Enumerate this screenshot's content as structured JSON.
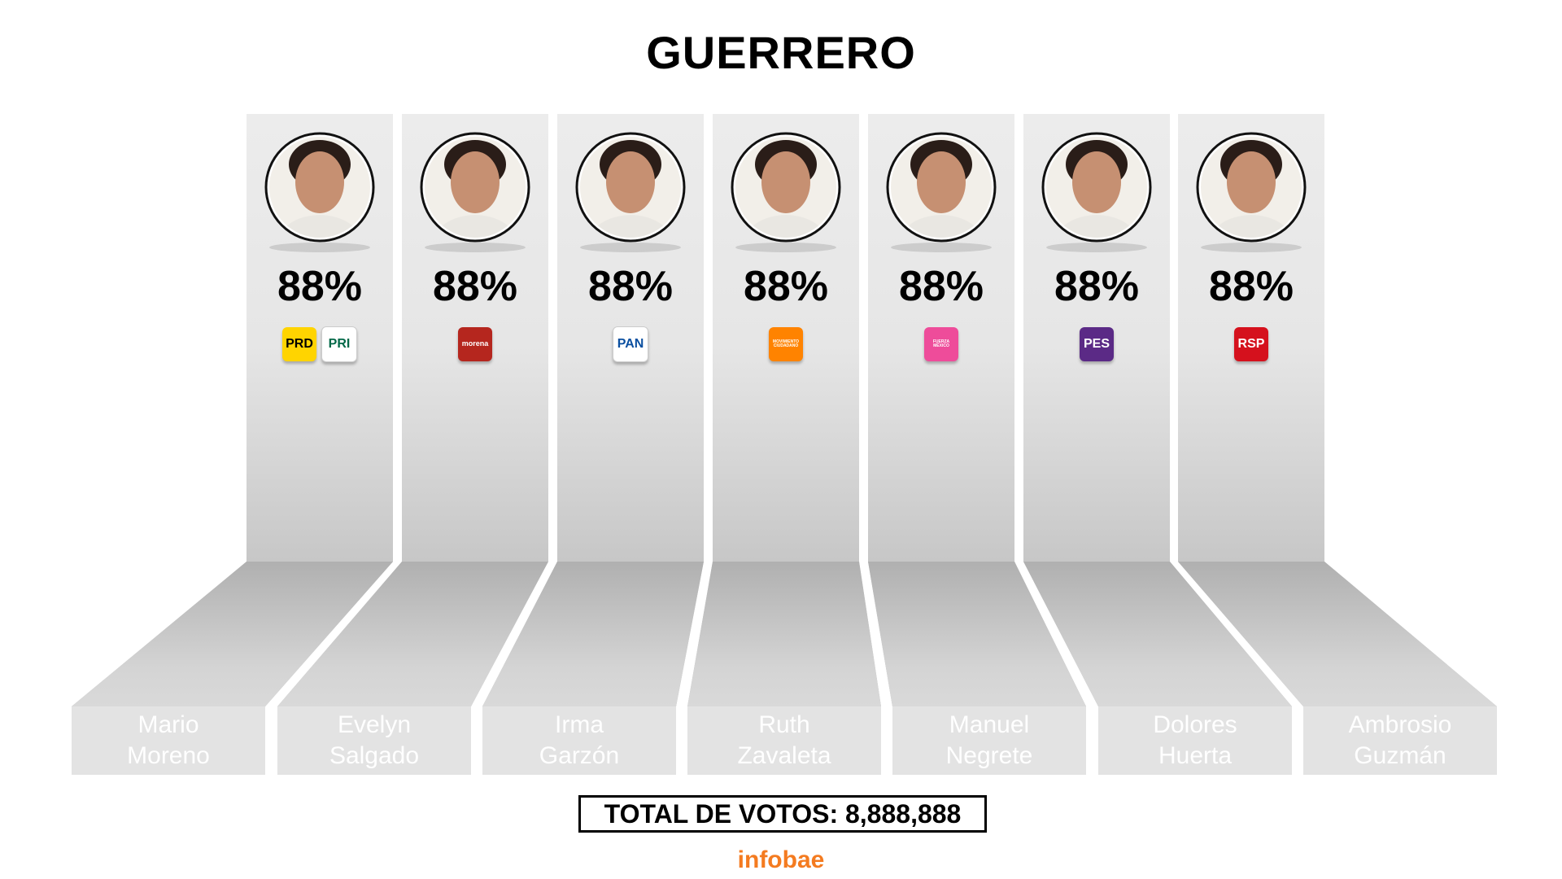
{
  "title": "GUERRERO",
  "total_label": "TOTAL DE VOTOS: 8,888,888",
  "brand": "infobae",
  "colors": {
    "panel_light": "#ededed",
    "panel_dark": "#a9a9a9",
    "name_text": "#ffffff",
    "brand": "#f47b20"
  },
  "candidates": [
    {
      "name_line1": "Mario",
      "name_line2": "Moreno",
      "percent": "88%",
      "logos": [
        {
          "label": "PRD",
          "icon": "prd-logo-icon",
          "bg": "#ffd400",
          "fg": "#000000"
        },
        {
          "label": "PRI",
          "icon": "pri-logo-icon",
          "bg": "#ffffff",
          "fg": "#006847"
        }
      ]
    },
    {
      "name_line1": "Evelyn",
      "name_line2": "Salgado",
      "percent": "88%",
      "logos": [
        {
          "label": "morena",
          "icon": "morena-logo-icon",
          "bg": "#b5261e",
          "fg": "#ffffff"
        }
      ]
    },
    {
      "name_line1": "Irma",
      "name_line2": "Garzón",
      "percent": "88%",
      "logos": [
        {
          "label": "PAN",
          "icon": "pan-logo-icon",
          "bg": "#ffffff",
          "fg": "#0a4fa0"
        }
      ]
    },
    {
      "name_line1": "Ruth",
      "name_line2": "Zavaleta",
      "percent": "88%",
      "logos": [
        {
          "label": "MOVIMIENTO CIUDADANO",
          "icon": "movimiento-ciudadano-logo-icon",
          "bg": "#ff8300",
          "fg": "#ffffff"
        }
      ]
    },
    {
      "name_line1": "Manuel",
      "name_line2": "Negrete",
      "percent": "88%",
      "logos": [
        {
          "label": "FUERZA MÉXICO",
          "icon": "fuerza-mexico-logo-icon",
          "bg": "#ee4c9a",
          "fg": "#ffffff"
        }
      ]
    },
    {
      "name_line1": "Dolores",
      "name_line2": "Huerta",
      "percent": "88%",
      "logos": [
        {
          "label": "PES",
          "icon": "pes-logo-icon",
          "bg": "#5b2a86",
          "fg": "#ffffff"
        }
      ]
    },
    {
      "name_line1": "Ambrosio",
      "name_line2": "Guzmán",
      "percent": "88%",
      "logos": [
        {
          "label": "RSP",
          "icon": "rsp-logo-icon",
          "bg": "#d5111d",
          "fg": "#ffffff"
        }
      ]
    }
  ]
}
